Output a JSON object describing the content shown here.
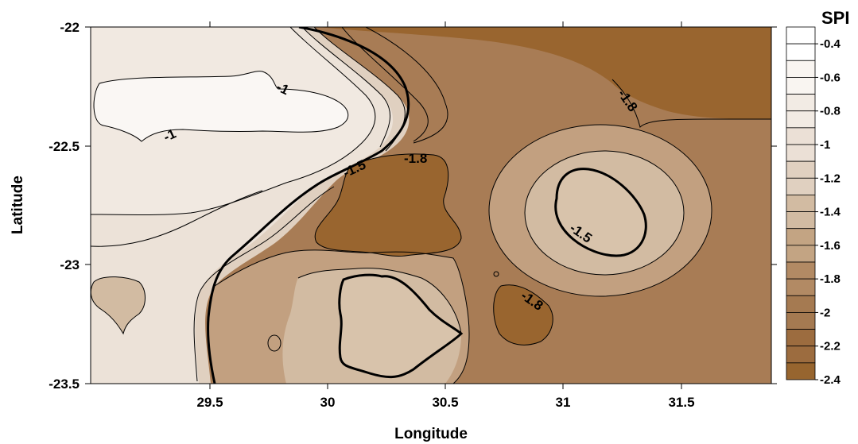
{
  "map": {
    "x_axis": {
      "title": "Longitude",
      "ticks": [
        "29.5",
        "30",
        "30.5",
        "31",
        "31.5"
      ]
    },
    "y_axis": {
      "title": "Latitude",
      "ticks": [
        "-22",
        "-22.5",
        "-23",
        "-23.5"
      ]
    },
    "contour_labels": [
      "-1",
      "-1",
      "-1.5",
      "-1.8",
      "-1.8",
      "-1.5",
      "-1.8"
    ],
    "legend": {
      "title": "SPI",
      "labels": [
        "-0.4",
        "-0.6",
        "-0.8",
        "-1",
        "-1.2",
        "-1.4",
        "-1.6",
        "-1.8",
        "-2",
        "-2.2",
        "-2.4"
      ],
      "colors": [
        "#ffffff",
        "#f9f5f1",
        "#f2ebe4",
        "#ebe0d6",
        "#e0d0c0",
        "#d2bba2",
        "#c3a483",
        "#b28a64",
        "#a57a51",
        "#9c6c3f",
        "#97652f"
      ]
    },
    "zone_colors": {
      "lightest": "#f7f3ef",
      "light": "#ece2d8",
      "medium_light": "#e0d0c0",
      "medium": "#d2bba2",
      "medium_dark": "#c2a080",
      "dark": "#a87c55",
      "darkest": "#99652f"
    }
  }
}
